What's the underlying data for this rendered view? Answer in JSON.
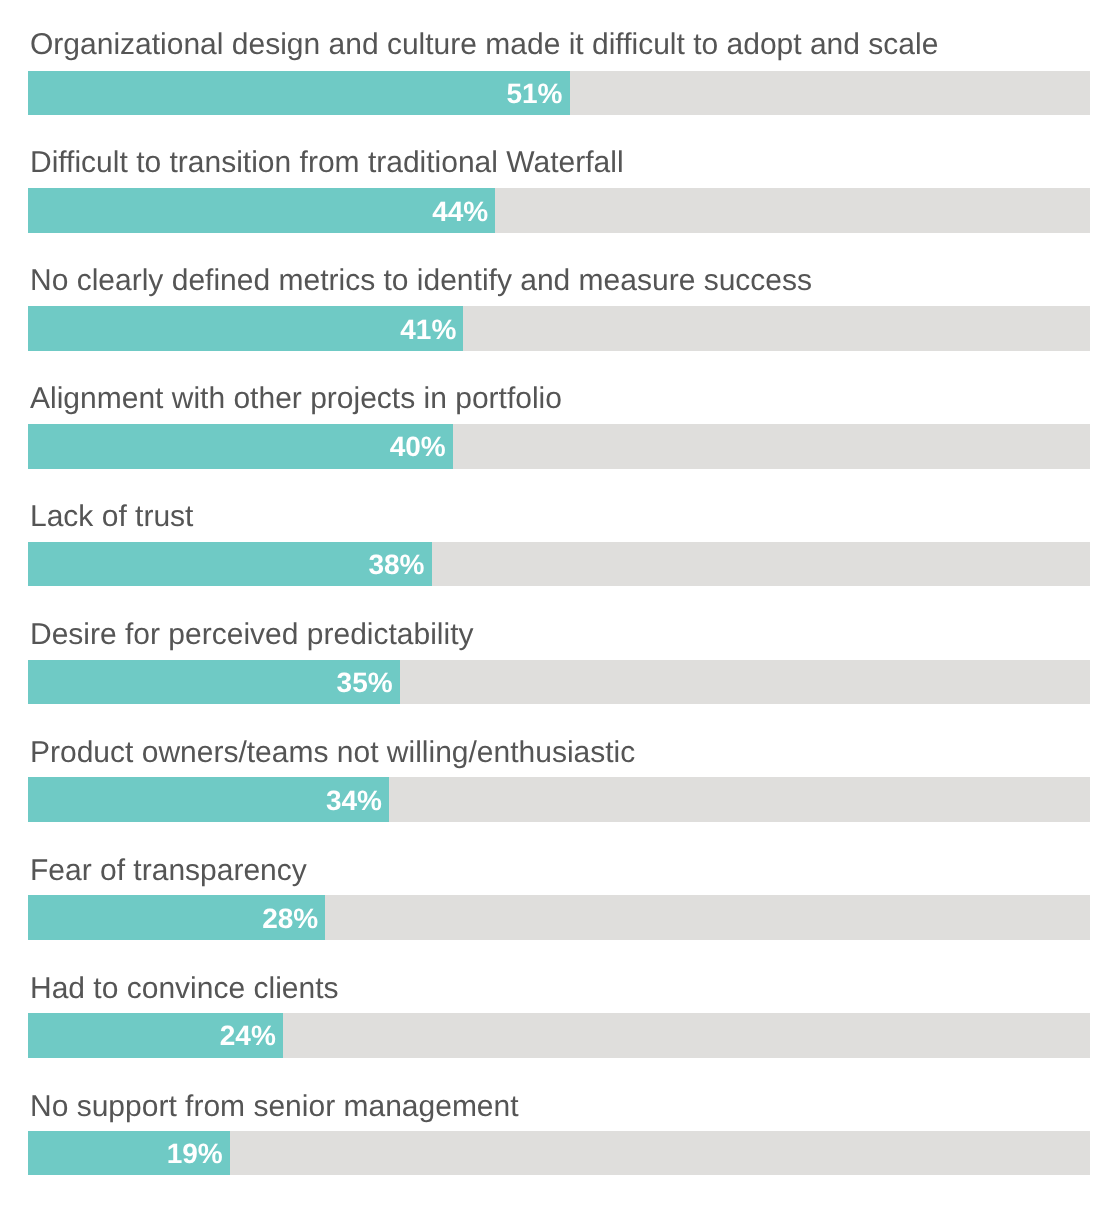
{
  "chart_data": {
    "type": "bar",
    "orientation": "horizontal",
    "stacked": true,
    "tick_labels": false,
    "categories": [
      "Organizational design and culture made it difficult to adopt and scale",
      "Difficult to transition from traditional Waterfall",
      "No clearly defined metrics to identify and measure success",
      "Alignment with other projects in portfolio",
      "Lack of trust",
      "Desire for perceived predictability",
      "Product owners/teams not willing/enthusiastic",
      "Fear of transparency",
      "Had to convince clients",
      "No support from senior management"
    ],
    "series": [
      {
        "color": "#6fcac5",
        "values": [
          51,
          44,
          41,
          40,
          38,
          35,
          34,
          28,
          24,
          19
        ],
        "value_labels": [
          "51%",
          "44%",
          "41%",
          "40%",
          "38%",
          "35%",
          "34%",
          "28%",
          "24%",
          "19%"
        ]
      },
      {
        "color": "#dfdedc",
        "values": [
          49,
          56,
          59,
          60,
          62,
          65,
          66,
          72,
          76,
          81
        ]
      }
    ]
  }
}
